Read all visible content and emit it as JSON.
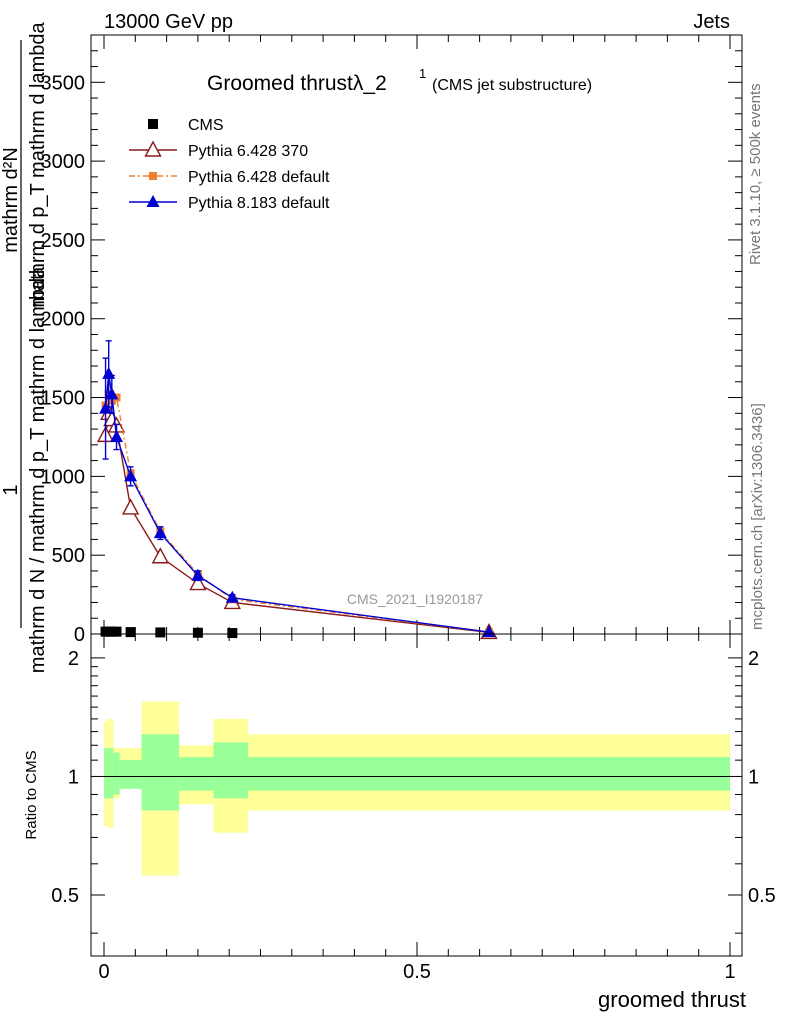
{
  "header": {
    "left": "13000 GeV pp",
    "right": "Jets"
  },
  "side_labels": {
    "rivet": "Rivet 3.1.10, ≥ 500k events",
    "mcplots": "mcplots.cern.ch [arXiv:1306.3436]"
  },
  "watermark": "CMS_2021_I1920187",
  "chart_data": [
    {
      "type": "line",
      "panel": "main",
      "title": "Groomed thrustλ_2",
      "title_sup": "1",
      "title_note": "(CMS jet substructure)",
      "ylabel_lines": [
        "mathrm d N / mathrm d p_T mathrm d lambda",
        "mathrm d²N",
        "mathrm d p_T mathrm d lambda",
        "1"
      ],
      "ylabel_full": "1 / mathrm d N / mathrm d p_T mathrm d lambda · mathrm d²N / mathrm d p_T mathrm d lambda",
      "xlim": [
        0,
        1
      ],
      "ylim": [
        0,
        3800
      ],
      "yticks": [
        0,
        500,
        1000,
        1500,
        2000,
        2500,
        3000,
        3500
      ],
      "ytick_labels": [
        "0",
        "500",
        "1000",
        "1500",
        "2000",
        "2500",
        "3000",
        "3500"
      ],
      "legend": [
        "CMS",
        "Pythia 6.428 370",
        "Pythia 6.428 default",
        "Pythia 8.183 default"
      ],
      "series": [
        {
          "name": "CMS",
          "color": "#000000",
          "marker": "square",
          "x": [
            0.0025,
            0.0075,
            0.0125,
            0.02,
            0.0425,
            0.09,
            0.15,
            0.205
          ],
          "y": [
            15,
            15,
            15,
            15,
            12,
            10,
            8,
            6
          ]
        },
        {
          "name": "Pythia 6.428 370",
          "color": "#8b1a1a",
          "marker": "triangle-open",
          "x": [
            0.0025,
            0.0075,
            0.0125,
            0.02,
            0.0425,
            0.09,
            0.15,
            0.205,
            0.615
          ],
          "y": [
            1260,
            1400,
            1360,
            1320,
            800,
            490,
            320,
            200,
            10
          ]
        },
        {
          "name": "Pythia 6.428 default",
          "color": "#f08030",
          "marker": "square-small",
          "x": [
            0.0025,
            0.0075,
            0.0125,
            0.02,
            0.0425,
            0.09,
            0.15,
            0.205,
            0.615
          ],
          "y": [
            1450,
            1520,
            1480,
            1500,
            1020,
            650,
            380,
            220,
            12
          ]
        },
        {
          "name": "Pythia 8.183 default",
          "color": "#0000d0",
          "marker": "triangle",
          "x": [
            0.0025,
            0.0075,
            0.0125,
            0.02,
            0.0425,
            0.09,
            0.15,
            0.205,
            0.615
          ],
          "y": [
            1430,
            1650,
            1520,
            1250,
            1000,
            640,
            370,
            230,
            12
          ],
          "yerr": [
            320,
            210,
            120,
            80,
            60,
            40,
            30,
            20,
            5
          ]
        }
      ]
    },
    {
      "type": "area",
      "panel": "ratio",
      "ylabel": "Ratio to CMS",
      "xlabel": "groomed thrust",
      "xlim": [
        0,
        1
      ],
      "ylim": [
        0.35,
        2.3
      ],
      "yticks": [
        0.5,
        1,
        2
      ],
      "ytick_labels": [
        "0.5",
        "1",
        "2"
      ],
      "xticks": [
        0,
        0.5,
        1
      ],
      "xtick_labels": [
        "0",
        "0.5",
        "1"
      ],
      "bins": [
        0,
        0.005,
        0.01,
        0.015,
        0.025,
        0.06,
        0.12,
        0.175,
        0.23,
        1.0
      ],
      "band_stat_low": [
        0.88,
        0.88,
        0.88,
        0.9,
        0.93,
        0.82,
        0.92,
        0.88,
        0.92
      ],
      "band_stat_high": [
        1.18,
        1.18,
        1.18,
        1.15,
        1.1,
        1.28,
        1.12,
        1.22,
        1.12
      ],
      "band_tot_low": [
        0.75,
        0.74,
        0.74,
        0.88,
        0.93,
        0.56,
        0.85,
        0.72,
        0.82
      ],
      "band_tot_high": [
        1.38,
        1.4,
        1.4,
        1.18,
        1.18,
        1.55,
        1.2,
        1.4,
        1.28
      ],
      "stat_color": "#99ff99",
      "tot_color": "#ffff99"
    }
  ]
}
